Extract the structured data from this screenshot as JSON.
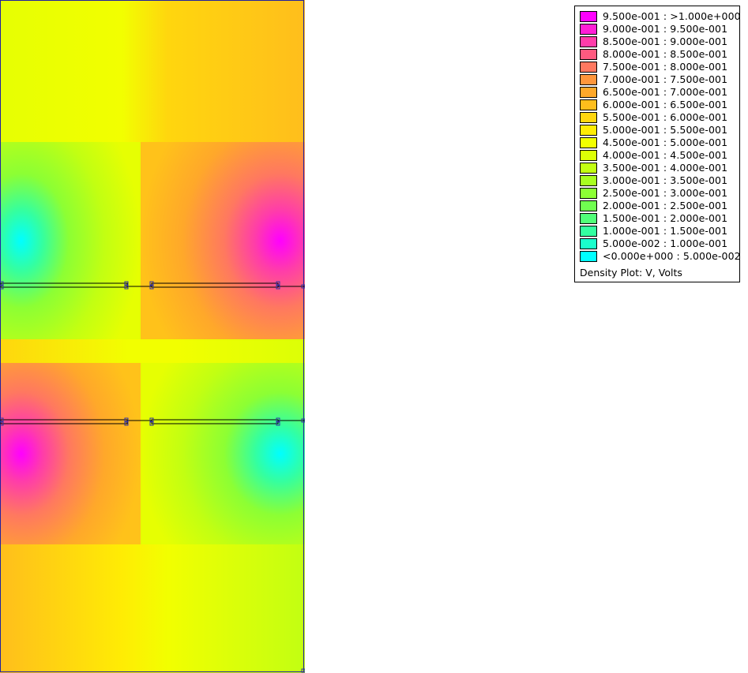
{
  "legend": {
    "entries": [
      {
        "label": "9.500e-001 : >1.000e+000",
        "color": "#ff00ff"
      },
      {
        "label": "9.000e-001 : 9.500e-001",
        "color": "#ff1ed6"
      },
      {
        "label": "8.500e-001 : 9.000e-001",
        "color": "#ff3caa"
      },
      {
        "label": "8.000e-001 : 8.500e-001",
        "color": "#ff5a80"
      },
      {
        "label": "7.500e-001 : 8.000e-001",
        "color": "#ff7860"
      },
      {
        "label": "7.000e-001 : 7.500e-001",
        "color": "#ff963c"
      },
      {
        "label": "6.500e-001 : 7.000e-001",
        "color": "#ffa82a"
      },
      {
        "label": "6.000e-001 : 6.500e-001",
        "color": "#ffbe1c"
      },
      {
        "label": "5.500e-001 : 6.000e-001",
        "color": "#ffd60e"
      },
      {
        "label": "5.000e-001 : 5.500e-001",
        "color": "#ffec04"
      },
      {
        "label": "4.500e-001 : 5.000e-001",
        "color": "#f2ff00"
      },
      {
        "label": "4.000e-001 : 4.500e-001",
        "color": "#dcff06"
      },
      {
        "label": "3.500e-001 : 4.000e-001",
        "color": "#c2ff12"
      },
      {
        "label": "3.000e-001 : 3.500e-001",
        "color": "#a8ff20"
      },
      {
        "label": "2.500e-001 : 3.000e-001",
        "color": "#8cff34"
      },
      {
        "label": "2.000e-001 : 2.500e-001",
        "color": "#70ff50"
      },
      {
        "label": "1.500e-001 : 2.000e-001",
        "color": "#50ff78"
      },
      {
        "label": "1.000e-001 : 1.500e-001",
        "color": "#34ffa0"
      },
      {
        "label": "5.000e-002 : 1.000e-001",
        "color": "#1affcc"
      },
      {
        "label": "<0.000e+000 : 5.000e-002",
        "color": "#00ffff"
      }
    ],
    "caption": "Density Plot: V, Volts"
  }
}
